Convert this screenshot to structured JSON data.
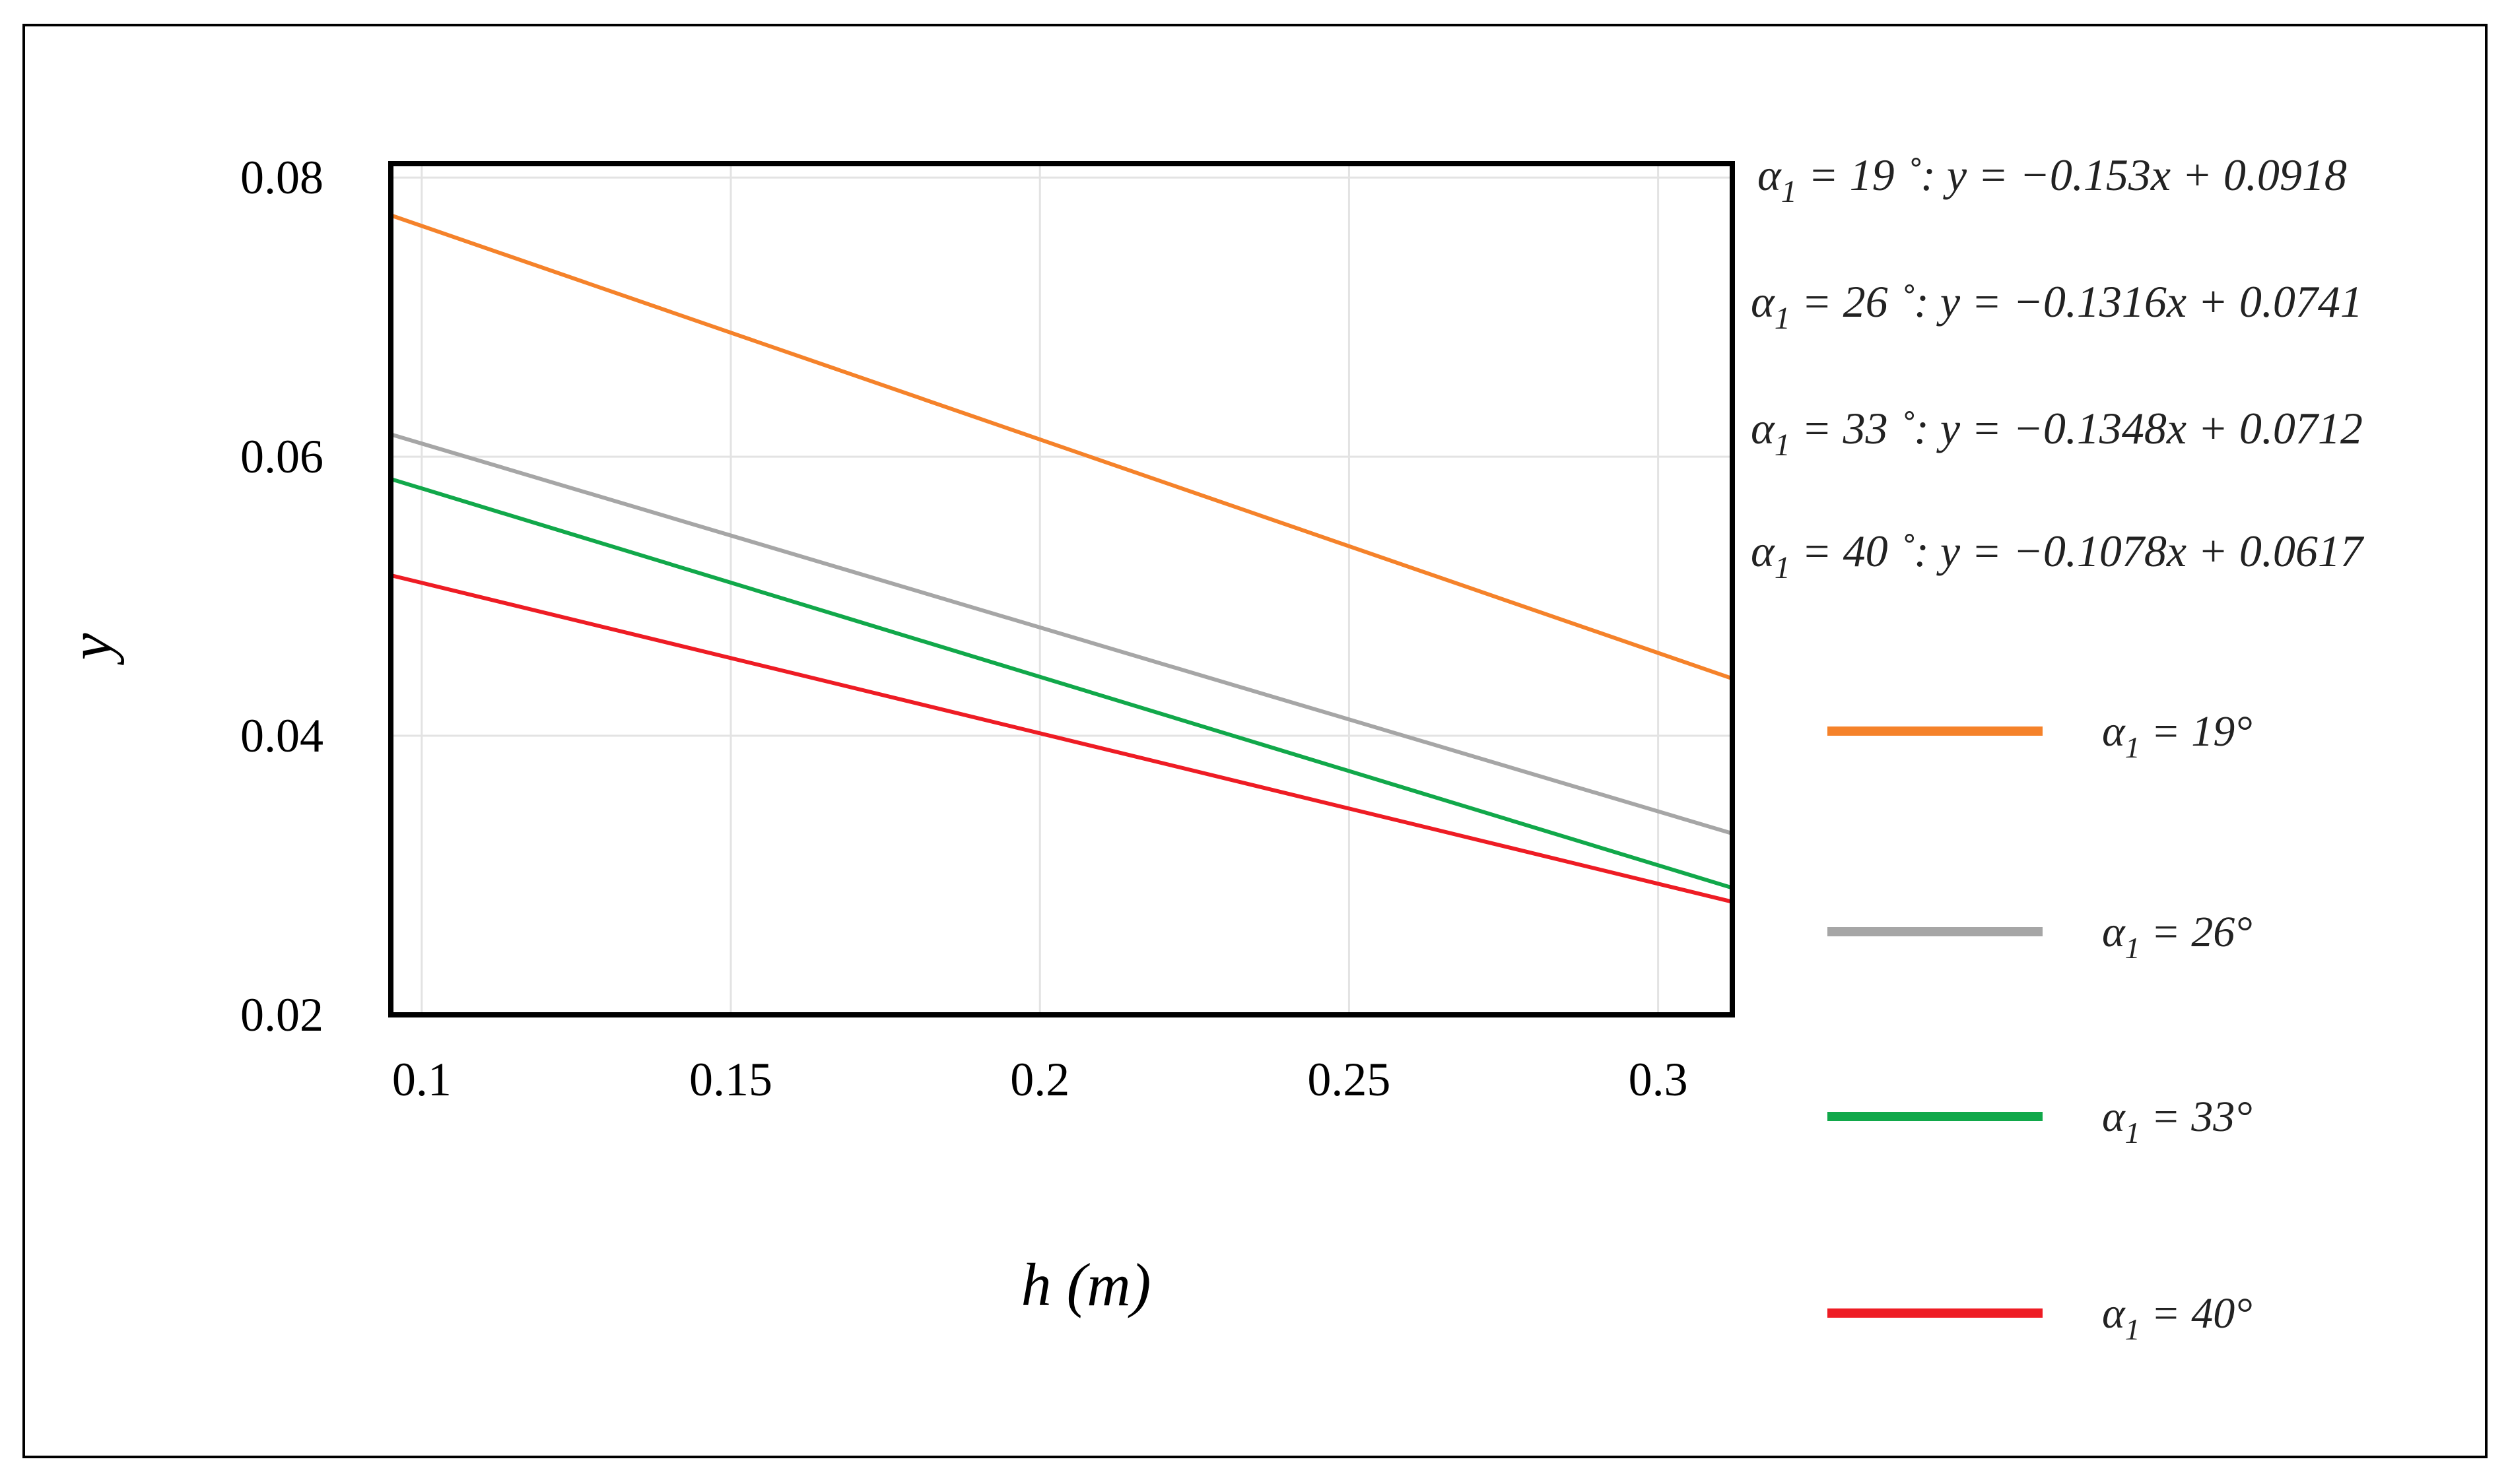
{
  "chart_data": {
    "type": "line",
    "xlabel": "h (m)",
    "ylabel": "y",
    "xlim": [
      0.095,
      0.312
    ],
    "ylim": [
      0.02,
      0.081
    ],
    "x_ticks": [
      "0.1",
      "0.15",
      "0.2",
      "0.25",
      "0.3"
    ],
    "y_ticks": [
      "0.02",
      "0.04",
      "0.06",
      "0.08"
    ],
    "grid": true,
    "legend_position": "right",
    "series": [
      {
        "name_prefix": "α",
        "name_sub": "1",
        "name_suffix": " = 19°",
        "color": "#f5822a",
        "x": [
          0.095,
          0.312
        ],
        "y": [
          0.0773,
          0.0441
        ],
        "equation": {
          "prefix": "α",
          "sub": "1",
          "suffix": " = 19 ˚: y = −0.153x + 0.0918"
        }
      },
      {
        "name_prefix": "α",
        "name_sub": "1",
        "name_suffix": " = 26°",
        "color": "#a6a6a6",
        "x": [
          0.095,
          0.312
        ],
        "y": [
          0.0616,
          0.033
        ],
        "equation": {
          "prefix": "α",
          "sub": "1",
          "suffix": " = 26 ˚: y = −0.1316x + 0.0741"
        }
      },
      {
        "name_prefix": "α",
        "name_sub": "1",
        "name_suffix": " = 33°",
        "color": "#11a84a",
        "x": [
          0.095,
          0.312
        ],
        "y": [
          0.0584,
          0.0291
        ],
        "equation": {
          "prefix": "α",
          "sub": "1",
          "suffix": " = 33 ˚: y = −0.1348x + 0.0712"
        }
      },
      {
        "name_prefix": "α",
        "name_sub": "1",
        "name_suffix": " = 40°",
        "color": "#ee1c24",
        "x": [
          0.095,
          0.312
        ],
        "y": [
          0.0515,
          0.0281
        ],
        "equation": {
          "prefix": "α",
          "sub": "1",
          "suffix": " = 40 ˚: y = −0.1078x + 0.0617"
        }
      }
    ]
  }
}
